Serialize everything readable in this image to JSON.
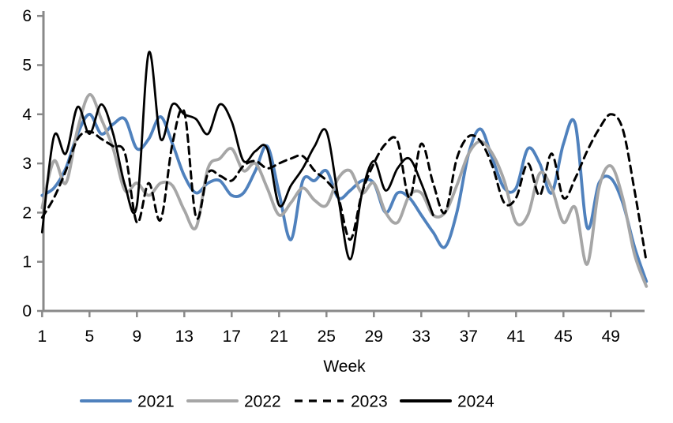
{
  "chart": {
    "xlabel": "Week",
    "y_tick_labels": [
      "0",
      "1",
      "2",
      "3",
      "4",
      "5",
      "6"
    ],
    "x_tick_labels": [
      "1",
      "5",
      "9",
      "13",
      "17",
      "21",
      "25",
      "29",
      "33",
      "37",
      "41",
      "45",
      "49"
    ]
  },
  "colors": {
    "axis": "#898989",
    "text": "#000000",
    "series_2021": "#4F81BD",
    "series_2022": "#A6A6A6",
    "series_2023": "#000000",
    "series_2024": "#000000"
  },
  "legend": [
    {
      "label": "2021",
      "color": "#4F81BD",
      "dash": false
    },
    {
      "label": "2022",
      "color": "#A6A6A6",
      "dash": false
    },
    {
      "label": "2023",
      "color": "#000000",
      "dash": true
    },
    {
      "label": "2024",
      "color": "#000000",
      "dash": false
    }
  ],
  "chart_data": {
    "type": "line",
    "title": "",
    "xlabel": "Week",
    "ylabel": "",
    "xlim": [
      1,
      52
    ],
    "ylim": [
      0,
      6
    ],
    "grid": false,
    "legend_position": "bottom",
    "x": [
      1,
      2,
      3,
      4,
      5,
      6,
      7,
      8,
      9,
      10,
      11,
      12,
      13,
      14,
      15,
      16,
      17,
      18,
      19,
      20,
      21,
      22,
      23,
      24,
      25,
      26,
      27,
      28,
      29,
      30,
      31,
      32,
      33,
      34,
      35,
      36,
      37,
      38,
      39,
      40,
      41,
      42,
      43,
      44,
      45,
      46,
      47,
      48,
      49,
      50,
      51,
      52
    ],
    "y_ticks": [
      0,
      1,
      2,
      3,
      4,
      5,
      6
    ],
    "x_ticks": [
      1,
      5,
      9,
      13,
      17,
      21,
      25,
      29,
      33,
      37,
      41,
      45,
      49
    ],
    "series": [
      {
        "name": "2021",
        "style": "solid",
        "values": [
          2.35,
          2.5,
          2.9,
          3.6,
          4.0,
          3.6,
          3.8,
          3.9,
          3.3,
          3.5,
          3.95,
          3.4,
          2.75,
          2.4,
          2.6,
          2.65,
          2.35,
          2.4,
          2.85,
          3.35,
          2.4,
          1.45,
          2.65,
          2.65,
          2.85,
          2.3,
          2.45,
          2.65,
          2.6,
          2.0,
          2.4,
          2.3,
          1.95,
          1.6,
          1.3,
          2.0,
          3.2,
          3.7,
          3.1,
          2.5,
          2.5,
          3.3,
          3.0,
          2.4,
          3.4,
          3.8,
          1.7,
          2.6,
          2.7,
          2.2,
          1.3,
          0.6
        ]
      },
      {
        "name": "2022",
        "style": "solid",
        "values": [
          2.1,
          3.05,
          2.6,
          3.7,
          4.4,
          3.9,
          3.3,
          2.45,
          2.6,
          2.35,
          2.6,
          2.55,
          2.05,
          1.7,
          2.9,
          3.1,
          3.3,
          2.85,
          3.0,
          2.5,
          1.95,
          2.2,
          2.5,
          2.25,
          2.15,
          2.7,
          2.85,
          2.4,
          2.6,
          2.0,
          1.8,
          2.35,
          2.4,
          1.95,
          2.0,
          2.55,
          3.2,
          3.45,
          3.2,
          2.65,
          1.8,
          1.95,
          2.8,
          2.5,
          1.8,
          2.1,
          0.95,
          2.5,
          2.95,
          2.3,
          1.15,
          0.5
        ]
      },
      {
        "name": "2023",
        "style": "dash",
        "values": [
          1.9,
          2.3,
          2.85,
          3.5,
          3.65,
          3.5,
          3.35,
          3.2,
          1.8,
          2.6,
          1.85,
          3.4,
          4.05,
          1.9,
          2.8,
          2.75,
          2.65,
          2.95,
          3.05,
          2.9,
          3.0,
          3.1,
          3.15,
          2.85,
          2.65,
          2.3,
          1.45,
          2.4,
          3.0,
          3.4,
          3.45,
          2.3,
          3.4,
          2.6,
          2.0,
          3.1,
          3.55,
          3.45,
          2.95,
          2.2,
          2.3,
          3.0,
          2.35,
          3.2,
          2.3,
          2.7,
          3.25,
          3.7,
          4.0,
          3.7,
          2.45,
          1.0
        ]
      },
      {
        "name": "2024",
        "style": "solid",
        "values": [
          1.6,
          3.55,
          3.2,
          4.15,
          3.6,
          4.2,
          3.6,
          2.55,
          2.15,
          5.25,
          3.5,
          4.2,
          4.0,
          3.9,
          3.6,
          4.2,
          3.85,
          3.05,
          3.25,
          3.3,
          2.15,
          2.55,
          2.9,
          3.35,
          3.65,
          2.3,
          1.05,
          2.4,
          3.05,
          2.45,
          2.9,
          3.1,
          2.6,
          1.95,
          null,
          null,
          null,
          null,
          null,
          null,
          null,
          null,
          null,
          null,
          null,
          null,
          null,
          null,
          null,
          null,
          null,
          null
        ]
      }
    ]
  }
}
